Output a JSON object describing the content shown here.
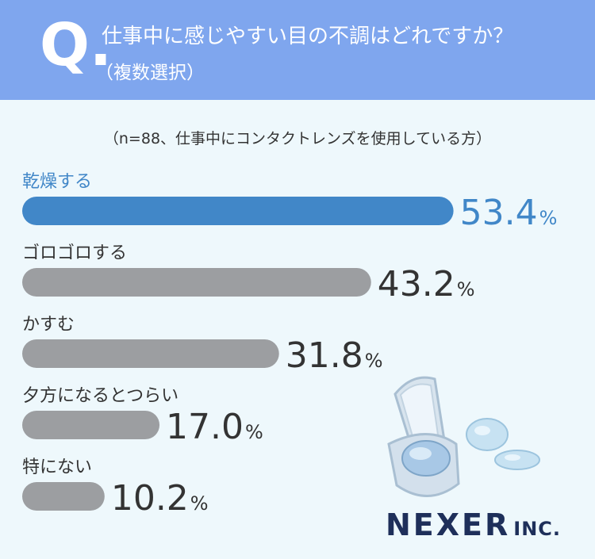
{
  "header": {
    "q_mark": "Q.",
    "title": "仕事中に感じやすい目の不調はどれですか？",
    "subtitle": "（複数選択）"
  },
  "note": "（n=88、仕事中にコンタクトレンズを使用している方）",
  "logo": {
    "name": "NEXER",
    "suffix": "INC."
  },
  "colors": {
    "highlight": "#4187c8",
    "bar": "#9c9ea1",
    "label_dark": "#333333"
  },
  "chart_data": {
    "type": "bar",
    "orientation": "horizontal",
    "categories": [
      "乾燥する",
      "ゴロゴロする",
      "かすむ",
      "夕方になるとつらい",
      "特にない"
    ],
    "values": [
      53.4,
      43.2,
      31.8,
      17.0,
      10.2
    ],
    "value_labels": [
      "53.4",
      "43.2",
      "31.8",
      "17.0",
      "10.2"
    ],
    "unit": "%",
    "highlight_index": 0
  }
}
